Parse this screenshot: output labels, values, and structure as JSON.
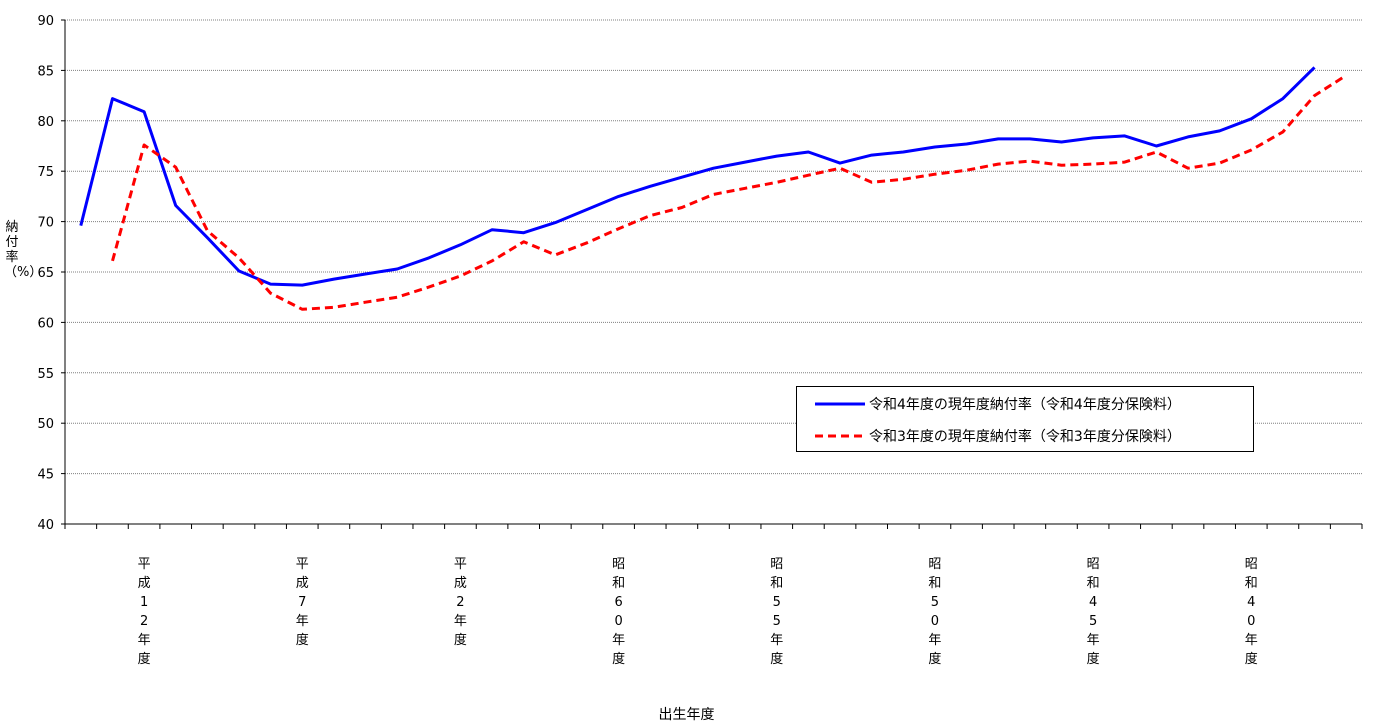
{
  "chart_data": {
    "type": "line",
    "xlabel": "出生年度",
    "ylabel": "納付率（%）",
    "ylim": [
      40,
      90
    ],
    "yticks": [
      40,
      45,
      50,
      55,
      60,
      65,
      70,
      75,
      80,
      85,
      90
    ],
    "grid": true,
    "legend_position": "lower-right",
    "category_labels": [
      {
        "index": 2,
        "label": "平成12年度"
      },
      {
        "index": 7,
        "label": "平成7年度"
      },
      {
        "index": 12,
        "label": "平成2年度"
      },
      {
        "index": 17,
        "label": "昭和60年度"
      },
      {
        "index": 22,
        "label": "昭和55年度"
      },
      {
        "index": 27,
        "label": "昭和50年度"
      },
      {
        "index": 32,
        "label": "昭和45年度"
      },
      {
        "index": 37,
        "label": "昭和40年度"
      }
    ],
    "series": [
      {
        "name": "令和4年度の現年度納付率（令和4年度分保険料）",
        "color": "#0000ff",
        "dash": "solid",
        "x_start": 0,
        "values": [
          69.6,
          82.2,
          80.9,
          71.6,
          68.4,
          65.1,
          63.8,
          63.7,
          64.3,
          64.8,
          65.3,
          66.4,
          67.7,
          69.2,
          68.9,
          69.9,
          71.2,
          72.5,
          73.5,
          74.4,
          75.3,
          75.9,
          76.5,
          76.9,
          75.8,
          76.6,
          76.9,
          77.4,
          77.7,
          78.2,
          78.2,
          77.9,
          78.3,
          78.5,
          77.5,
          78.4,
          79.0,
          80.2,
          82.2,
          85.3
        ]
      },
      {
        "name": "令和3年度の現年度納付率（令和3年度分保険料）",
        "color": "#ff0000",
        "dash": "dashed",
        "x_start": 1,
        "values": [
          66.1,
          77.6,
          75.4,
          69.1,
          66.4,
          62.9,
          61.3,
          61.5,
          62.0,
          62.5,
          63.5,
          64.6,
          66.1,
          68.0,
          66.7,
          67.9,
          69.3,
          70.6,
          71.4,
          72.7,
          73.3,
          73.9,
          74.6,
          75.3,
          73.9,
          74.2,
          74.7,
          75.1,
          75.7,
          76.0,
          75.6,
          75.7,
          75.9,
          76.9,
          75.3,
          75.8,
          77.1,
          78.9,
          82.5,
          84.5
        ]
      }
    ]
  }
}
